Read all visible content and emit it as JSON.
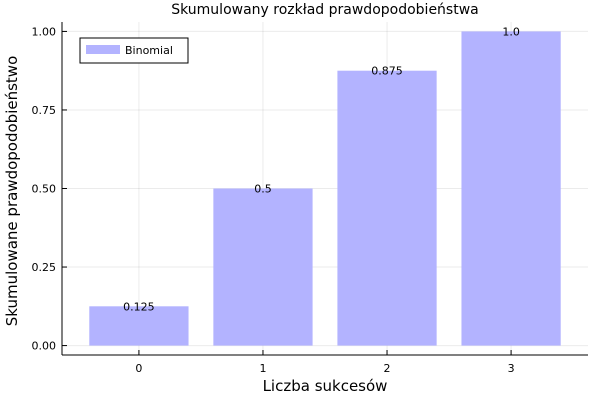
{
  "chart_data": {
    "type": "bar",
    "title": "Skumulowany rozkład prawdopodobieństwa",
    "xlabel": "Liczba sukcesów",
    "ylabel": "Skumulowane prawdopodobieństwo",
    "categories": [
      "0",
      "1",
      "2",
      "3"
    ],
    "series": [
      {
        "name": "Binomial",
        "values": [
          0.125,
          0.5,
          0.875,
          1.0
        ],
        "data_labels": [
          "0.125",
          "0.5",
          "0.875",
          "1.0"
        ],
        "color": "#b3b3ff"
      }
    ],
    "yticks": [
      0.0,
      0.25,
      0.5,
      0.75,
      1.0
    ],
    "ytick_labels": [
      "0.00",
      "0.25",
      "0.50",
      "0.75",
      "1.00"
    ],
    "ylim": [
      -0.03,
      1.03
    ],
    "xlim": [
      -0.62,
      3.62
    ],
    "grid": true,
    "legend_position": "top-left"
  }
}
